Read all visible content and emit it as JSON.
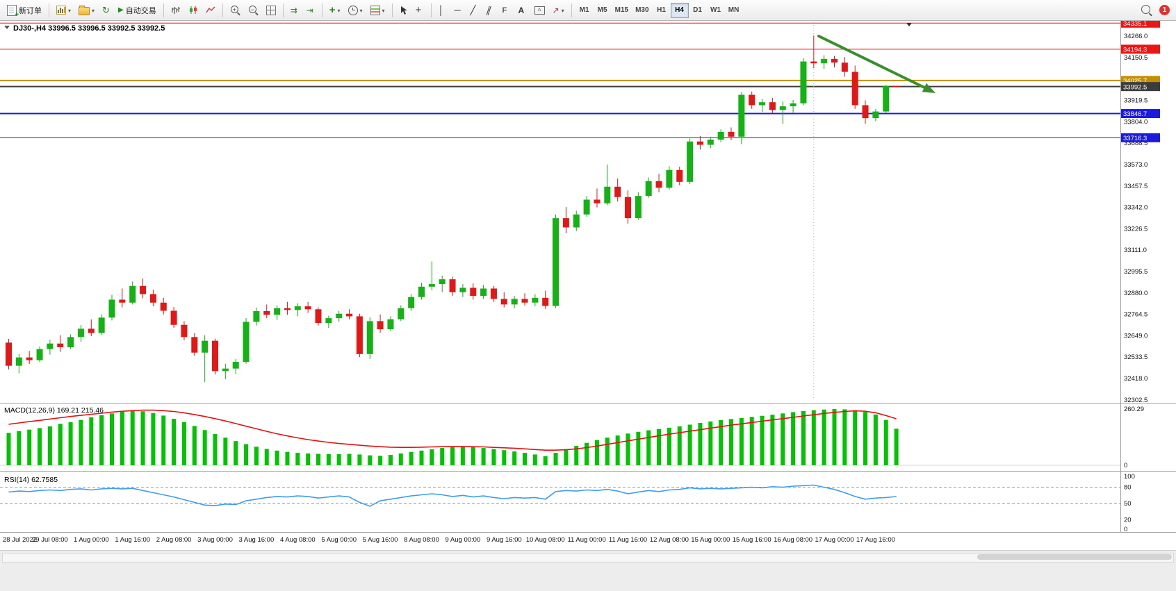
{
  "toolbar": {
    "new_order": "新订单",
    "autotrading": "自动交易",
    "timeframes": [
      "M1",
      "M5",
      "M15",
      "M30",
      "H1",
      "H4",
      "D1",
      "W1",
      "MN"
    ],
    "active_timeframe": "H4",
    "notification_count": "1"
  },
  "chart": {
    "symbol_label": "DJ30-,H4 33996.5 33996.5 33992.5 33992.5",
    "colors": {
      "up": "#15b215",
      "down": "#e41717",
      "arrow": "#3a8f2d"
    },
    "price_min": 32300,
    "price_max": 34340,
    "price_ticks": [
      "34266.0",
      "34150.5",
      "34035.0",
      "33919.5",
      "33804.0",
      "33688.5",
      "33573.0",
      "33457.5",
      "33342.0",
      "33226.5",
      "33111.0",
      "32995.5",
      "32880.0",
      "32764.5",
      "32649.0",
      "32533.5",
      "32418.0",
      "32302.5"
    ],
    "levels": [
      {
        "price": 34335.1,
        "label": "34335.1",
        "color": "#ef1414",
        "width": 1
      },
      {
        "price": 34194.3,
        "label": "34194.3",
        "color": "#ef1414",
        "width": 1
      },
      {
        "price": 34025.7,
        "label": "34025.7",
        "color": "#c39100",
        "width": 2
      },
      {
        "price": 33992.5,
        "label": "33992.5",
        "color": "#3c3c3c",
        "width": 2
      },
      {
        "price": 33846.7,
        "label": "33846.7",
        "color": "#1a1ae0",
        "width": 2
      },
      {
        "price": 33716.3,
        "label": "33716.3",
        "color": "#1a1ae0",
        "width": 1
      }
    ],
    "candles": [
      [
        32610,
        32630,
        32465,
        32485
      ],
      [
        32485,
        32550,
        32445,
        32530
      ],
      [
        32530,
        32565,
        32495,
        32515
      ],
      [
        32515,
        32590,
        32505,
        32575
      ],
      [
        32575,
        32625,
        32545,
        32605
      ],
      [
        32605,
        32650,
        32560,
        32585
      ],
      [
        32585,
        32655,
        32575,
        32640
      ],
      [
        32640,
        32705,
        32615,
        32685
      ],
      [
        32685,
        32735,
        32645,
        32662
      ],
      [
        32662,
        32762,
        32652,
        32745
      ],
      [
        32745,
        32868,
        32730,
        32842
      ],
      [
        32842,
        32902,
        32800,
        32826
      ],
      [
        32826,
        32940,
        32816,
        32916
      ],
      [
        32916,
        32956,
        32850,
        32872
      ],
      [
        32872,
        32896,
        32806,
        32826
      ],
      [
        32826,
        32852,
        32762,
        32782
      ],
      [
        32782,
        32802,
        32690,
        32706
      ],
      [
        32706,
        32726,
        32622,
        32640
      ],
      [
        32640,
        32662,
        32538,
        32556
      ],
      [
        32556,
        32650,
        32396,
        32620
      ],
      [
        32620,
        32632,
        32438,
        32456
      ],
      [
        32456,
        32496,
        32412,
        32470
      ],
      [
        32470,
        32522,
        32440,
        32506
      ],
      [
        32506,
        32742,
        32496,
        32722
      ],
      [
        32722,
        32800,
        32702,
        32780
      ],
      [
        32780,
        32816,
        32742,
        32760
      ],
      [
        32760,
        32812,
        32732,
        32796
      ],
      [
        32796,
        32830,
        32760,
        32786
      ],
      [
        32786,
        32822,
        32752,
        32806
      ],
      [
        32806,
        32830,
        32770,
        32790
      ],
      [
        32790,
        32800,
        32702,
        32716
      ],
      [
        32716,
        32756,
        32690,
        32742
      ],
      [
        32742,
        32782,
        32722,
        32766
      ],
      [
        32766,
        32790,
        32736,
        32752
      ],
      [
        32752,
        32766,
        32532,
        32548
      ],
      [
        32548,
        32746,
        32522,
        32726
      ],
      [
        32726,
        32762,
        32662,
        32682
      ],
      [
        32682,
        32752,
        32672,
        32736
      ],
      [
        32736,
        32812,
        32726,
        32796
      ],
      [
        32796,
        32872,
        32782,
        32856
      ],
      [
        32856,
        32932,
        32842,
        32912
      ],
      [
        32912,
        33048,
        32892,
        32926
      ],
      [
        32926,
        32972,
        32882,
        32952
      ],
      [
        32952,
        32966,
        32862,
        32882
      ],
      [
        32882,
        32926,
        32856,
        32906
      ],
      [
        32906,
        32930,
        32842,
        32862
      ],
      [
        32862,
        32922,
        32846,
        32902
      ],
      [
        32902,
        32916,
        32830,
        32846
      ],
      [
        32846,
        32882,
        32800,
        32816
      ],
      [
        32816,
        32862,
        32796,
        32846
      ],
      [
        32846,
        32876,
        32810,
        32826
      ],
      [
        32826,
        32872,
        32806,
        32852
      ],
      [
        32852,
        32890,
        32792,
        32808
      ],
      [
        32808,
        33302,
        32796,
        33282
      ],
      [
        33282,
        33342,
        33200,
        33232
      ],
      [
        33232,
        33322,
        33212,
        33302
      ],
      [
        33302,
        33402,
        33290,
        33382
      ],
      [
        33382,
        33442,
        33340,
        33362
      ],
      [
        33362,
        33572,
        33352,
        33452
      ],
      [
        33452,
        33496,
        33372,
        33396
      ],
      [
        33396,
        33432,
        33252,
        33282
      ],
      [
        33282,
        33422,
        33272,
        33402
      ],
      [
        33402,
        33502,
        33392,
        33482
      ],
      [
        33482,
        33522,
        33422,
        33446
      ],
      [
        33446,
        33562,
        33436,
        33542
      ],
      [
        33542,
        33560,
        33460,
        33478
      ],
      [
        33478,
        33712,
        33466,
        33696
      ],
      [
        33696,
        33726,
        33652,
        33678
      ],
      [
        33678,
        33722,
        33660,
        33706
      ],
      [
        33706,
        33762,
        33692,
        33748
      ],
      [
        33748,
        33772,
        33702,
        33722
      ],
      [
        33722,
        33962,
        33682,
        33948
      ],
      [
        33948,
        33966,
        33872,
        33892
      ],
      [
        33892,
        33926,
        33856,
        33908
      ],
      [
        33908,
        33932,
        33848,
        33866
      ],
      [
        33866,
        33912,
        33792,
        33886
      ],
      [
        33886,
        33920,
        33852,
        33902
      ],
      [
        33902,
        34146,
        33892,
        34128
      ],
      [
        34128,
        34268,
        34092,
        34118
      ],
      [
        34118,
        34162,
        34088,
        34142
      ],
      [
        34142,
        34158,
        34096,
        34122
      ],
      [
        34122,
        34152,
        34046,
        34072
      ],
      [
        34072,
        34106,
        33872,
        33892
      ],
      [
        33892,
        33918,
        33792,
        33822
      ],
      [
        33822,
        33872,
        33806,
        33858
      ],
      [
        33858,
        34002,
        33850,
        33996.5
      ],
      [
        33996.5,
        33996.5,
        33992.5,
        33992.5
      ]
    ],
    "time_labels": [
      "28 Jul 2022",
      "29 Jul 08:00",
      "1 Aug 00:00",
      "1 Aug 16:00",
      "2 Aug 08:00",
      "3 Aug 00:00",
      "3 Aug 16:00",
      "4 Aug 08:00",
      "5 Aug 00:00",
      "5 Aug 16:00",
      "8 Aug 08:00",
      "9 Aug 00:00",
      "9 Aug 16:00",
      "10 Aug 08:00",
      "11 Aug 00:00",
      "11 Aug 16:00",
      "12 Aug 08:00",
      "15 Aug 00:00",
      "15 Aug 16:00",
      "16 Aug 08:00",
      "17 Aug 00:00",
      "17 Aug 16:00"
    ]
  },
  "macd": {
    "label": "MACD(12,26,9) 169.21 215.46",
    "axis_max_label": "260.29",
    "axis_zero_label": "0",
    "bar_color": "#00c400",
    "signal_color": "#e81010",
    "axis_max": 260.29,
    "histogram": [
      150,
      158,
      165,
      172,
      180,
      192,
      200,
      210,
      222,
      232,
      240,
      248,
      255,
      250,
      242,
      230,
      215,
      200,
      182,
      163,
      145,
      128,
      112,
      98,
      86,
      76,
      68,
      62,
      58,
      55,
      53,
      52,
      52,
      53,
      50,
      46,
      44,
      48,
      55,
      62,
      68,
      74,
      80,
      84,
      86,
      84,
      80,
      75,
      70,
      64,
      58,
      50,
      42,
      58,
      75,
      90,
      104,
      117,
      128,
      138,
      147,
      155,
      162,
      168,
      174,
      180,
      188,
      196,
      203,
      209,
      214,
      219,
      224,
      229,
      234,
      240,
      246,
      251,
      255,
      258,
      260.29,
      259,
      255,
      247,
      235,
      210,
      169.21
    ],
    "signal": [
      190,
      196,
      202,
      208,
      214,
      220,
      226,
      231,
      236,
      241,
      246,
      250,
      253,
      255,
      255,
      253,
      249,
      243,
      235,
      226,
      216,
      205,
      193,
      181,
      169,
      157,
      146,
      136,
      127,
      119,
      112,
      106,
      101,
      97,
      93,
      89,
      86,
      84,
      83,
      83,
      84,
      85,
      86,
      87,
      87,
      86,
      85,
      83,
      81,
      79,
      76,
      73,
      70,
      70,
      72,
      76,
      82,
      89,
      97,
      105,
      113,
      121,
      129,
      137,
      144,
      151,
      158,
      165,
      172,
      179,
      186,
      192,
      198,
      204,
      210,
      216,
      222,
      228,
      234,
      240,
      245,
      249,
      252,
      250,
      243,
      230,
      215.46
    ]
  },
  "rsi": {
    "label": "RSI(14) 62.7585",
    "line_color": "#3d9df0",
    "levels": [
      80,
      50
    ],
    "axis_labels": [
      "100",
      "80",
      "50",
      "20",
      "0"
    ],
    "values": [
      71,
      73,
      72,
      74,
      75,
      74,
      76,
      77,
      75,
      77,
      78,
      77,
      78,
      74,
      70,
      66,
      62,
      57,
      52,
      47,
      46,
      49,
      48,
      55,
      58,
      61,
      63,
      62,
      64,
      63,
      60,
      62,
      64,
      62,
      52,
      45,
      55,
      58,
      61,
      64,
      66,
      68,
      66,
      63,
      65,
      62,
      64,
      61,
      59,
      61,
      60,
      61,
      58,
      72,
      74,
      73,
      75,
      74,
      76,
      73,
      68,
      71,
      74,
      72,
      75,
      76,
      79,
      77,
      78,
      77,
      78,
      79,
      80,
      79,
      81,
      80,
      82,
      83,
      84,
      80,
      76,
      70,
      63,
      58,
      60,
      61,
      62.76
    ]
  }
}
